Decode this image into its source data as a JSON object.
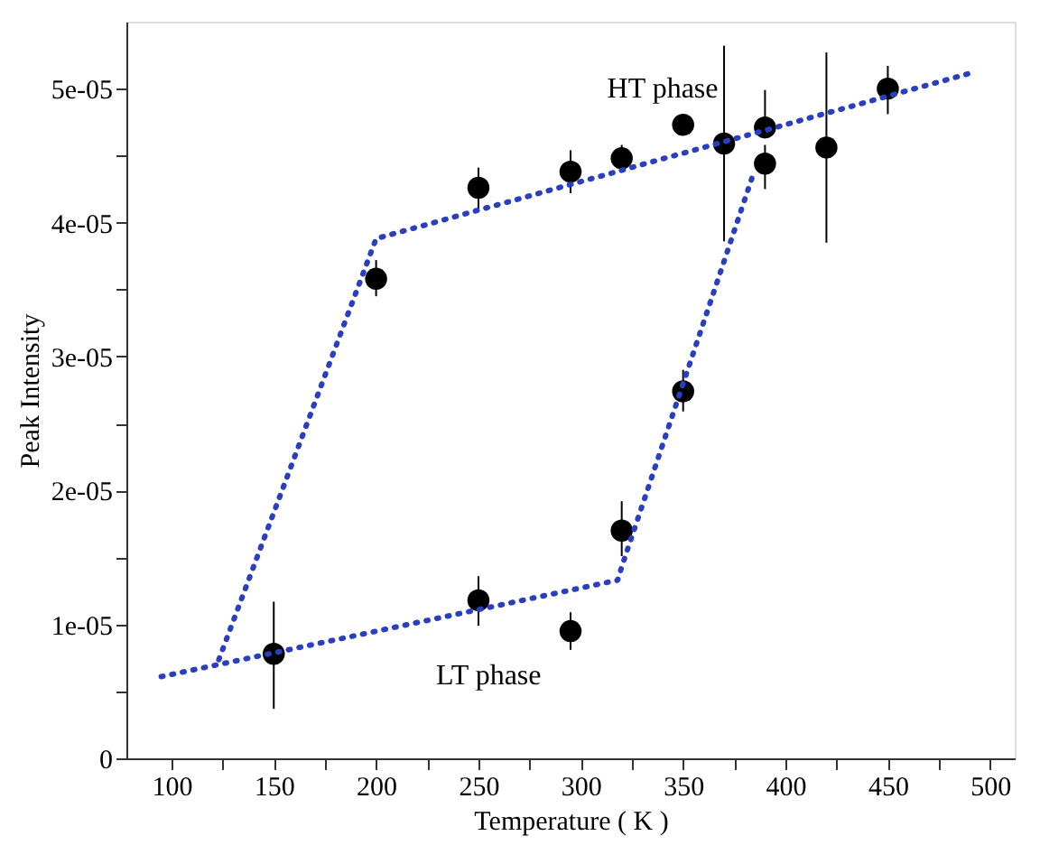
{
  "chart_data": {
    "type": "scatter",
    "xlabel": "Temperature ( K )",
    "ylabel": "Peak Intensity",
    "annotations": [
      "HT phase",
      "LT phase"
    ],
    "xlim": [
      78,
      512
    ],
    "ylim": [
      0,
      5.5e-05
    ],
    "xticks": [
      100,
      {
        "value": 125,
        "label": null
      },
      150,
      {
        "value": 175,
        "label": null
      },
      200,
      {
        "value": 225,
        "label": null
      },
      250,
      {
        "value": 275,
        "label": null
      },
      300,
      {
        "value": 325,
        "label": null
      },
      350,
      {
        "value": 375,
        "label": null
      },
      400,
      {
        "value": 425,
        "label": null
      },
      450,
      {
        "value": 475,
        "label": null
      },
      500
    ],
    "yticks": [
      0,
      {
        "value": 5e-06,
        "label": null
      },
      {
        "value": 1e-05,
        "label": "1e-05"
      },
      {
        "value": 1.5e-05,
        "label": null
      },
      {
        "value": 2e-05,
        "label": "2e-05"
      },
      {
        "value": 2.5e-05,
        "label": null
      },
      {
        "value": 3e-05,
        "label": "3e-05"
      },
      {
        "value": 3.5e-05,
        "label": null
      },
      {
        "value": 4e-05,
        "label": "4e-05"
      },
      {
        "value": 4.5e-05,
        "label": null
      },
      {
        "value": 5e-05,
        "label": "5e-05"
      }
    ],
    "grid": false,
    "series": [
      {
        "color": "#000000",
        "marker": "circle",
        "x": [
          150,
          250,
          295,
          320,
          350,
          200,
          250,
          295,
          320,
          350,
          370,
          390,
          390,
          420,
          450
        ],
        "values": [
          7.8e-06,
          1.18e-05,
          9.5e-06,
          1.7e-05,
          2.74e-05,
          3.58e-05,
          4.26e-05,
          4.38e-05,
          4.48e-05,
          4.73e-05,
          4.59e-05,
          4.71e-05,
          4.44e-05,
          4.56e-05,
          5e-05
        ],
        "errors": [
          [
            3.7e-06,
            1.17e-05
          ],
          [
            9.9e-06,
            1.36e-05
          ],
          [
            8.1e-06,
            1.09e-05
          ],
          [
            1.51e-05,
            1.92e-05
          ],
          [
            2.59e-05,
            2.9e-05
          ],
          [
            3.45e-05,
            3.72e-05
          ],
          [
            4.1e-05,
            4.41e-05
          ],
          [
            4.22e-05,
            4.54e-05
          ],
          [
            4.38e-05,
            4.58e-05
          ],
          [
            4.65e-05,
            4.79e-05
          ],
          [
            3.86e-05,
            5.32e-05
          ],
          [
            4.71e-05,
            4.99e-05
          ],
          [
            4.25e-05,
            4.58e-05
          ],
          [
            3.85e-05,
            5.27e-05
          ],
          [
            4.81e-05,
            5.17e-05
          ]
        ]
      },
      {
        "type": "line",
        "color": "#2a3fbf",
        "line_style": "dotted",
        "marker": "none",
        "x": [
          95,
          318,
          320,
          384
        ],
        "values": [
          6.1e-06,
          1.33e-05,
          1.43e-05,
          4.35e-05
        ]
      },
      {
        "type": "line",
        "color": "#2a3fbf",
        "line_style": "dotted",
        "marker": "none",
        "x": [
          489,
          200,
          123
        ],
        "values": [
          5.11e-05,
          3.88e-05,
          7.3e-06
        ]
      }
    ]
  }
}
